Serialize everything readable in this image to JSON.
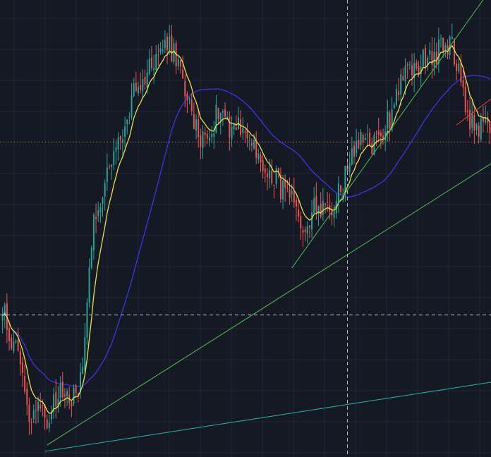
{
  "chart_data": {
    "type": "candlestick",
    "title": "",
    "xlabel": "",
    "ylabel": "",
    "n_bars": 220,
    "ylim": [
      0,
      100
    ],
    "grid": true,
    "crosshair": {
      "bar_index": 155,
      "price": 30.5
    },
    "price_line": {
      "value": 69.2
    },
    "close_anchors": [
      [
        0,
        33
      ],
      [
        4,
        24
      ],
      [
        8,
        21
      ],
      [
        10,
        12
      ],
      [
        13,
        8
      ],
      [
        16,
        12
      ],
      [
        20,
        7
      ],
      [
        24,
        11
      ],
      [
        28,
        14
      ],
      [
        32,
        12
      ],
      [
        36,
        17
      ],
      [
        38,
        36
      ],
      [
        41,
        52
      ],
      [
        44,
        57
      ],
      [
        48,
        63
      ],
      [
        52,
        68
      ],
      [
        55,
        72
      ],
      [
        58,
        79
      ],
      [
        62,
        82
      ],
      [
        66,
        86
      ],
      [
        70,
        89
      ],
      [
        74,
        91
      ],
      [
        78,
        88
      ],
      [
        82,
        81
      ],
      [
        86,
        73
      ],
      [
        90,
        70
      ],
      [
        94,
        72
      ],
      [
        98,
        78
      ],
      [
        102,
        73
      ],
      [
        106,
        73
      ],
      [
        110,
        71
      ],
      [
        114,
        66
      ],
      [
        118,
        62
      ],
      [
        122,
        62
      ],
      [
        126,
        58
      ],
      [
        130,
        56
      ],
      [
        134,
        48
      ],
      [
        136,
        51
      ],
      [
        140,
        54
      ],
      [
        144,
        55
      ],
      [
        148,
        55
      ],
      [
        152,
        58
      ],
      [
        154,
        62
      ],
      [
        158,
        68
      ],
      [
        162,
        69
      ],
      [
        166,
        68
      ],
      [
        170,
        71
      ],
      [
        174,
        75
      ],
      [
        178,
        82
      ],
      [
        182,
        86
      ],
      [
        186,
        85
      ],
      [
        190,
        88
      ],
      [
        194,
        89
      ],
      [
        198,
        90
      ],
      [
        202,
        91
      ],
      [
        205,
        85
      ],
      [
        208,
        77
      ],
      [
        211,
        73
      ],
      [
        214,
        72
      ],
      [
        217,
        74
      ],
      [
        219,
        71
      ]
    ],
    "ema_fast": {
      "color": "#e8e04a",
      "period": 8
    },
    "sma_slow": {
      "color": "#3a32d8",
      "period": 40
    },
    "up_color": "#26a69a",
    "down_color": "#ef5350",
    "trendlines": [
      {
        "color": "#4caf50",
        "from": [
          20,
          1.4
        ],
        "to": [
          220,
          64.5
        ]
      },
      {
        "color": "#4caf50",
        "from": [
          130,
          41
        ],
        "to": [
          216,
          101
        ]
      },
      {
        "color": "#26a69a",
        "from": [
          19,
          0
        ],
        "to": [
          220,
          15.5
        ]
      },
      {
        "color": "#e53935",
        "from": [
          204,
          73
        ],
        "to": [
          220,
          79
        ]
      }
    ]
  }
}
